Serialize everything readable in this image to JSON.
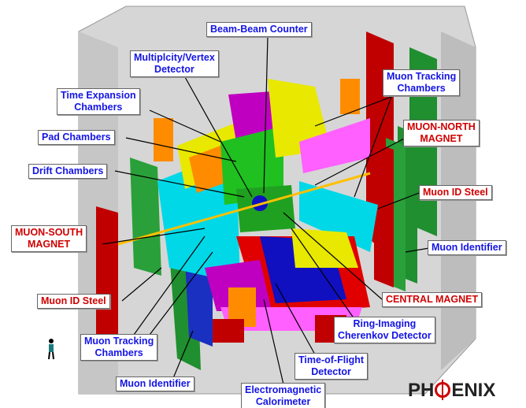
{
  "labels": [
    {
      "lines": [
        "Beam-Beam Counter"
      ]
    },
    {
      "lines": [
        "Multiplcity/Vertex",
        "Detector"
      ]
    },
    {
      "lines": [
        "Time Expansion",
        "Chambers"
      ]
    },
    {
      "lines": [
        "Muon Tracking",
        "Chambers"
      ]
    },
    {
      "lines": [
        "MUON-NORTH",
        "MAGNET"
      ]
    },
    {
      "lines": [
        "Pad Chambers"
      ]
    },
    {
      "lines": [
        "Drift Chambers"
      ]
    },
    {
      "lines": [
        "Muon ID Steel"
      ]
    },
    {
      "lines": [
        "MUON-SOUTH",
        "MAGNET"
      ]
    },
    {
      "lines": [
        "Muon Identifier"
      ]
    },
    {
      "lines": [
        "Muon ID Steel"
      ]
    },
    {
      "lines": [
        "CENTRAL MAGNET"
      ]
    },
    {
      "lines": [
        "Ring-Imaging",
        "Cherenkov Detector"
      ]
    },
    {
      "lines": [
        "Muon Tracking",
        "Chambers"
      ]
    },
    {
      "lines": [
        "Time-of-Flight",
        "Detector"
      ]
    },
    {
      "lines": [
        "Muon Identifier"
      ]
    },
    {
      "lines": [
        "Electromagnetic",
        "Calorimeter"
      ]
    }
  ],
  "logo": {
    "left": "PH",
    "right": "ENIX"
  }
}
